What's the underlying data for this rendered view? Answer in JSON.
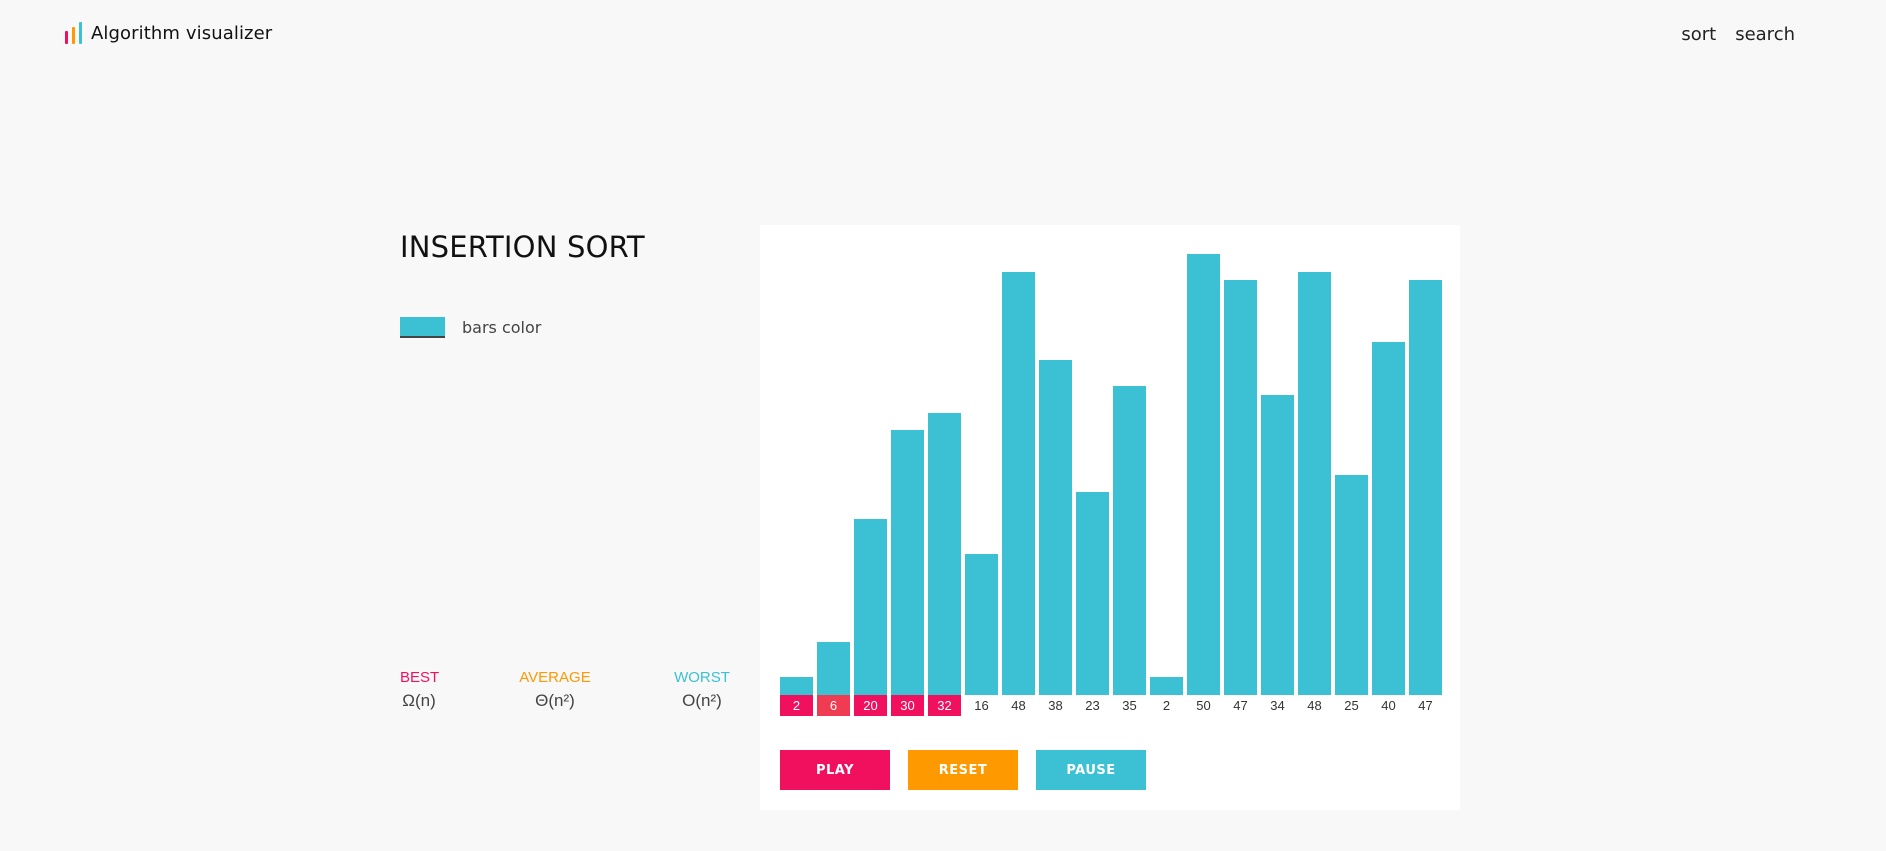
{
  "app": {
    "title": "Algorithm visualizer",
    "logo_colors": [
      "#f0105e",
      "#ff9900",
      "#3cc0d4"
    ]
  },
  "nav": {
    "items": [
      {
        "label": "sort"
      },
      {
        "label": "search"
      }
    ]
  },
  "algorithm": {
    "name": "INSERTION SORT",
    "bars_color_label": "bars color",
    "bars_color": "#3cc0d4",
    "sorted_color": "#f0105e",
    "compare_color": "#f03c52"
  },
  "complexity": {
    "best": {
      "label": "BEST",
      "value": "Ω(n)",
      "color": "#f0105e"
    },
    "average": {
      "label": "AVERAGE",
      "value": "Θ(n²)",
      "color": "#ff9900"
    },
    "worst": {
      "label": "WORST",
      "value": "O(n²)",
      "color": "#3cc0d4"
    }
  },
  "array": {
    "max_value": 50,
    "values": [
      2,
      6,
      20,
      30,
      32,
      16,
      48,
      38,
      23,
      35,
      2,
      50,
      47,
      34,
      48,
      25,
      40,
      47
    ],
    "sorted_count": 5,
    "compare_index": 1
  },
  "controls": {
    "play_label": "PLAY",
    "play_color": "#f0105e",
    "reset_label": "RESET",
    "reset_color": "#ff9900",
    "pause_label": "PAUSE",
    "pause_color": "#3cc0d4"
  }
}
